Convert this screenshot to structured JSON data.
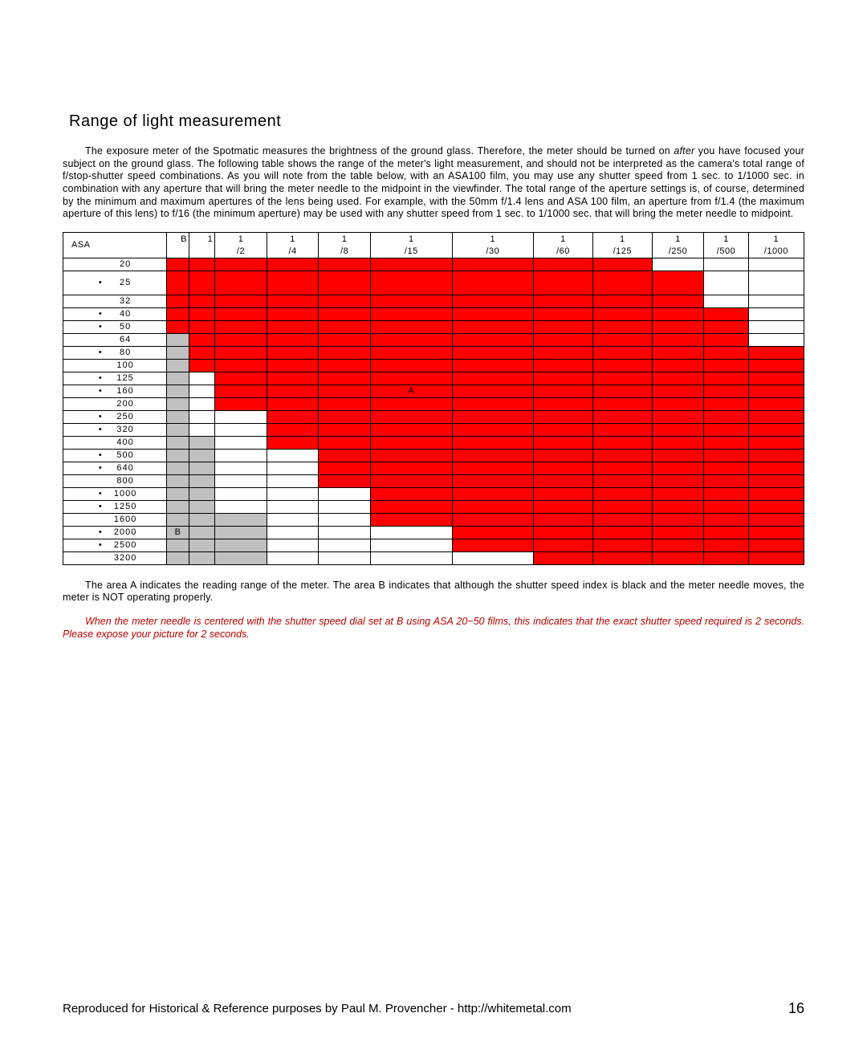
{
  "heading": "Range of light measurement",
  "para1_pre": "The exposure meter of the Spotmatic measures the brightness of the ground glass.  Therefore, the meter should be turned on ",
  "para1_italic": "after",
  "para1_post": " you have focused your subject on the ground glass.  The following table shows the range of the meter's light measurement, and should not be interpreted as the camera's total range of f/stop-shutter speed combinations.  As you will note from the table below, with an ASA100 film, you may use any shutter speed from 1 sec. to 1/1000 sec. in combination with any aperture that will bring the meter needle to the midpoint in the viewfinder.  The total range of the aperture settings is, of course, determined by the minimum and maximum apertures of the lens being used.  For example, with the 50mm f/1.4 lens and ASA 100 film, an aperture from f/1.4 (the maximum aperture of this lens) to f/16 (the minimum aperture) may be used with any shutter speed from 1 sec. to 1/1000 sec. that will bring the meter needle to midpoint.",
  "asa_header": "ASA",
  "shutter_top": [
    "B",
    "1",
    "1",
    "1",
    "1",
    "1",
    "1",
    "1",
    "1",
    "1",
    "1",
    "1"
  ],
  "shutter_bottom": [
    "",
    "",
    "/2",
    "/4",
    "/8",
    "/15",
    "/30",
    "/60",
    "/125",
    "/250",
    "/500",
    "/1000"
  ],
  "col_widths_pct": [
    14,
    3,
    3.5,
    7,
    7,
    7,
    11,
    11,
    8,
    8,
    7,
    6,
    7.5
  ],
  "rows": [
    {
      "label": "20",
      "bullet": false,
      "cells": [
        "r",
        "r",
        "r",
        "r",
        "r",
        "r",
        "r",
        "r",
        "r",
        "",
        "",
        ""
      ]
    },
    {
      "label": "25",
      "bullet": true,
      "tall": true,
      "cells": [
        "r",
        "r",
        "r",
        "r",
        "r",
        "r",
        "r",
        "r",
        "r",
        "r",
        "",
        ""
      ]
    },
    {
      "label": "32",
      "bullet": false,
      "cells": [
        "r",
        "r",
        "r",
        "r",
        "r",
        "r",
        "r",
        "r",
        "r",
        "r",
        "",
        ""
      ]
    },
    {
      "label": "40",
      "bullet": true,
      "cells": [
        "r",
        "r",
        "r",
        "r",
        "r",
        "r",
        "r",
        "r",
        "r",
        "r",
        "r",
        ""
      ]
    },
    {
      "label": "50",
      "bullet": true,
      "cells": [
        "r",
        "r",
        "r",
        "r",
        "r",
        "r",
        "r",
        "r",
        "r",
        "r",
        "r",
        ""
      ]
    },
    {
      "label": "64",
      "bullet": false,
      "cells": [
        "g",
        "r",
        "r",
        "r",
        "r",
        "r",
        "r",
        "r",
        "r",
        "r",
        "r",
        ""
      ]
    },
    {
      "label": "80",
      "bullet": true,
      "cells": [
        "g",
        "r",
        "r",
        "r",
        "r",
        "r",
        "r",
        "r",
        "r",
        "r",
        "r",
        "r"
      ]
    },
    {
      "label": "100",
      "bullet": false,
      "cells": [
        "g",
        "r",
        "r",
        "r",
        "r",
        "r",
        "r",
        "r",
        "r",
        "r",
        "r",
        "r"
      ]
    },
    {
      "label": "125",
      "bullet": true,
      "cells": [
        "g",
        "",
        "r",
        "r",
        "r",
        "r",
        "r",
        "r",
        "r",
        "r",
        "r",
        "r"
      ]
    },
    {
      "label": "160",
      "bullet": true,
      "cells": [
        "g",
        "",
        "r",
        "r",
        "r",
        "rA",
        "r",
        "r",
        "r",
        "r",
        "r",
        "r"
      ]
    },
    {
      "label": "200",
      "bullet": false,
      "cells": [
        "g",
        "",
        "r",
        "r",
        "r",
        "r",
        "r",
        "r",
        "r",
        "r",
        "r",
        "r"
      ]
    },
    {
      "label": "250",
      "bullet": true,
      "cells": [
        "g",
        "",
        "",
        "r",
        "r",
        "r",
        "r",
        "r",
        "r",
        "r",
        "r",
        "r"
      ]
    },
    {
      "label": "320",
      "bullet": true,
      "cells": [
        "g",
        "",
        "",
        "r",
        "r",
        "r",
        "r",
        "r",
        "r",
        "r",
        "r",
        "r"
      ]
    },
    {
      "label": "400",
      "bullet": false,
      "cells": [
        "g",
        "g",
        "",
        "r",
        "r",
        "r",
        "r",
        "r",
        "r",
        "r",
        "r",
        "r"
      ]
    },
    {
      "label": "500",
      "bullet": true,
      "cells": [
        "g",
        "g",
        "",
        "",
        "r",
        "r",
        "r",
        "r",
        "r",
        "r",
        "r",
        "r"
      ]
    },
    {
      "label": "640",
      "bullet": true,
      "cells": [
        "g",
        "g",
        "",
        "",
        "r",
        "r",
        "r",
        "r",
        "r",
        "r",
        "r",
        "r"
      ]
    },
    {
      "label": "800",
      "bullet": false,
      "cells": [
        "g",
        "g",
        "",
        "",
        "r",
        "r",
        "r",
        "r",
        "r",
        "r",
        "r",
        "r"
      ]
    },
    {
      "label": "1000",
      "bullet": true,
      "cells": [
        "g",
        "g",
        "",
        "",
        "",
        "r",
        "r",
        "r",
        "r",
        "r",
        "r",
        "r"
      ]
    },
    {
      "label": "1250",
      "bullet": true,
      "cells": [
        "g",
        "g",
        "",
        "",
        "",
        "r",
        "r",
        "r",
        "r",
        "r",
        "r",
        "r"
      ]
    },
    {
      "label": "1600",
      "bullet": false,
      "cells": [
        "g",
        "g",
        "g",
        "",
        "",
        "r",
        "r",
        "r",
        "r",
        "r",
        "r",
        "r"
      ]
    },
    {
      "label": "2000",
      "bullet": true,
      "cells": [
        "gB",
        "g",
        "g",
        "",
        "",
        "",
        "r",
        "r",
        "r",
        "r",
        "r",
        "r"
      ]
    },
    {
      "label": "2500",
      "bullet": true,
      "cells": [
        "g",
        "g",
        "g",
        "",
        "",
        "",
        "r",
        "r",
        "r",
        "r",
        "r",
        "r"
      ]
    },
    {
      "label": "3200",
      "bullet": false,
      "cells": [
        "g",
        "g",
        "g",
        "",
        "",
        "",
        "",
        "r",
        "r",
        "r",
        "r",
        "r"
      ]
    }
  ],
  "label_A": "A",
  "label_B": "B",
  "para2": "The area A indicates the reading range of the meter.  The area B indicates that although the shutter speed index is black and the meter needle moves, the meter is NOT operating properly.",
  "italic_note": "When the meter needle is centered with the shutter speed dial set at B using ASA 20~50 films, this indicates that the exact shutter speed required is 2 seconds.  Please expose your picture for 2 seconds.",
  "footer_credit": "Reproduced for Historical & Reference purposes by Paul M. Provencher - http://whitemetal.com",
  "page_number": "16",
  "colors": {
    "red": "#ff0000",
    "grey": "#c0c0c0",
    "note": "#b80000"
  }
}
